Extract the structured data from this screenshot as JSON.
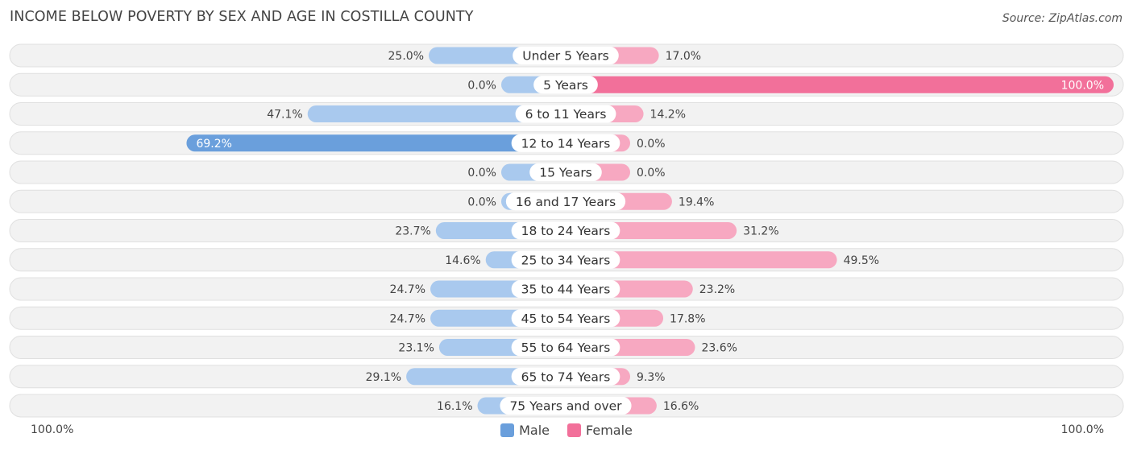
{
  "title": "INCOME BELOW POVERTY BY SEX AND AGE IN COSTILLA COUNTY",
  "source": "Source: ZipAtlas.com",
  "axis": {
    "left_label": "100.0%",
    "right_label": "100.0%"
  },
  "legend": {
    "male": "Male",
    "female": "Female"
  },
  "colors": {
    "male_strong": "#6a9fdc",
    "male_light": "#a9c9ee",
    "female_strong": "#f2709a",
    "female_light": "#f7a8c1",
    "row_bg": "#f2f2f2",
    "row_border": "#e0e0e0"
  },
  "chart_data": {
    "type": "bar",
    "orientation": "horizontal-diverging",
    "title": "INCOME BELOW POVERTY BY SEX AND AGE IN COSTILLA COUNTY",
    "xlim": [
      -100,
      100
    ],
    "categories": [
      "Under 5 Years",
      "5 Years",
      "6 to 11 Years",
      "12 to 14 Years",
      "15 Years",
      "16 and 17 Years",
      "18 to 24 Years",
      "25 to 34 Years",
      "35 to 44 Years",
      "45 to 54 Years",
      "55 to 64 Years",
      "65 to 74 Years",
      "75 Years and over"
    ],
    "series": [
      {
        "name": "Male",
        "values": [
          25.0,
          0.0,
          47.1,
          69.2,
          0.0,
          0.0,
          23.7,
          14.6,
          24.7,
          24.7,
          23.1,
          29.1,
          16.1
        ],
        "labels": [
          "25.0%",
          "0.0%",
          "47.1%",
          "69.2%",
          "0.0%",
          "0.0%",
          "23.7%",
          "14.6%",
          "24.7%",
          "24.7%",
          "23.1%",
          "29.1%",
          "16.1%"
        ]
      },
      {
        "name": "Female",
        "values": [
          17.0,
          100.0,
          14.2,
          0.0,
          0.0,
          19.4,
          31.2,
          49.5,
          23.2,
          17.8,
          23.6,
          9.3,
          16.6
        ],
        "labels": [
          "17.0%",
          "100.0%",
          "14.2%",
          "0.0%",
          "0.0%",
          "19.4%",
          "31.2%",
          "49.5%",
          "23.2%",
          "17.8%",
          "23.6%",
          "9.3%",
          "16.6%"
        ]
      }
    ]
  }
}
